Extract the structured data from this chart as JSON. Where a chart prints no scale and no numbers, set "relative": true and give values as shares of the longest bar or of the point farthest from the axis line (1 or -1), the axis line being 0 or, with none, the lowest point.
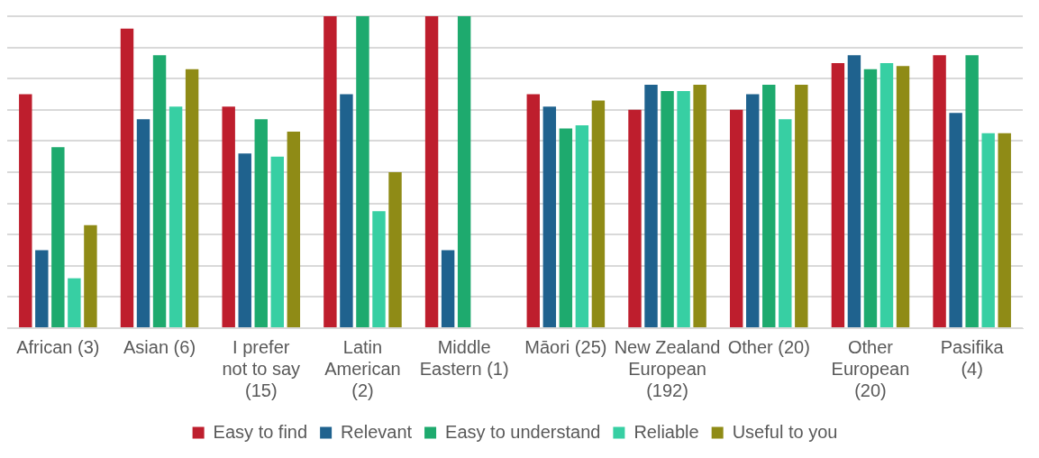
{
  "chart_data": {
    "type": "bar",
    "relative": true,
    "grid": "y",
    "legend": "bottom",
    "categories": [
      "African (3)",
      "Asian (6)",
      "I prefer not to say (15)",
      "Latin American (2)",
      "Middle Eastern (1)",
      "Māori (25)",
      "New Zealand European (192)",
      "Other (20)",
      "Other European (20)",
      "Pasifika (4)"
    ],
    "series": [
      {
        "name": "Easy to find",
        "color": "#be1e2d",
        "values": [
          0.75,
          0.96,
          0.71,
          1,
          1,
          0.75,
          0.7,
          0.7,
          0.85,
          0.875
        ]
      },
      {
        "name": "Relevant",
        "color": "#1f628e",
        "values": [
          0.25,
          0.67,
          0.56,
          0.75,
          0.25,
          0.71,
          0.78,
          0.75,
          0.875,
          0.69
        ]
      },
      {
        "name": "Easy to understand",
        "color": "#1eaa6e",
        "values": [
          0.58,
          0.875,
          0.67,
          1,
          1,
          0.64,
          0.76,
          0.78,
          0.83,
          0.875
        ]
      },
      {
        "name": "Reliable",
        "color": "#37cfa3",
        "values": [
          0.16,
          0.71,
          0.55,
          0.375,
          0,
          0.65,
          0.76,
          0.67,
          0.85,
          0.625
        ]
      },
      {
        "name": "Useful to you",
        "color": "#8f8b16",
        "values": [
          0.33,
          0.83,
          0.63,
          0.5,
          0,
          0.73,
          0.78,
          0.78,
          0.84,
          0.625
        ]
      }
    ]
  }
}
